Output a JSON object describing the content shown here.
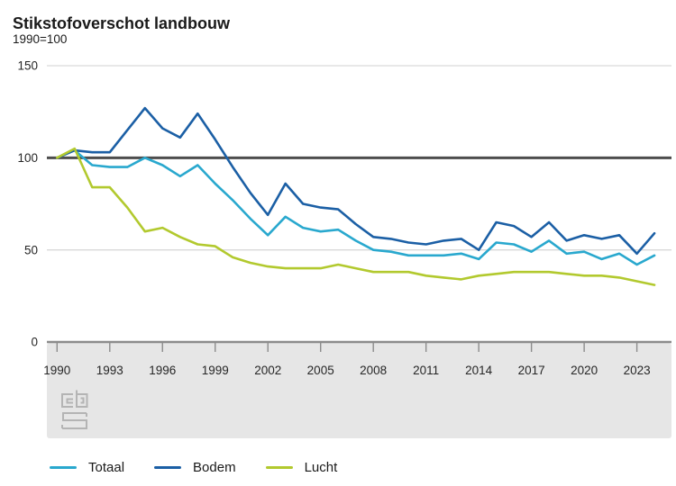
{
  "title": "Stikstofoverschot landbouw",
  "subtitle": "1990=100",
  "icons": {
    "cbs_logo": "cbs-logo-icon"
  },
  "colors": {
    "totaal": "#29a8ce",
    "bodem": "#1b5fa5",
    "lucht": "#b2c92e",
    "grid_light": "#d9d9d9",
    "baseline_100": "#4d4d4d",
    "zero_axis": "#8c8c8c",
    "band_bg": "#e6e6e6",
    "tick": "#8c8c8c",
    "text": "#262626",
    "logo_gray": "#b4b4b4"
  },
  "chart_data": {
    "type": "line",
    "title": "Stikstofoverschot landbouw",
    "subtitle": "1990=100",
    "xlabel": "",
    "ylabel": "",
    "ylim": [
      0,
      150
    ],
    "reference_line": 100,
    "grid": "horizontal",
    "legend_position": "bottom",
    "y_ticks": [
      "150",
      "100",
      "50",
      "0"
    ],
    "x_tick_labels": [
      "1990",
      "1993",
      "1996",
      "1999",
      "2002",
      "2005",
      "2008",
      "2011",
      "2014",
      "2017",
      "2020",
      "2023"
    ],
    "x": [
      1990,
      1991,
      1992,
      1993,
      1994,
      1995,
      1996,
      1997,
      1998,
      1999,
      2000,
      2001,
      2002,
      2003,
      2004,
      2005,
      2006,
      2007,
      2008,
      2009,
      2010,
      2011,
      2012,
      2013,
      2014,
      2015,
      2016,
      2017,
      2018,
      2019,
      2020,
      2021,
      2022,
      2023,
      2024
    ],
    "series": [
      {
        "name": "Totaal",
        "color_key": "totaal",
        "values": [
          100,
          104,
          96,
          95,
          95,
          100,
          96,
          90,
          96,
          86,
          77,
          67,
          58,
          68,
          62,
          60,
          61,
          55,
          50,
          49,
          47,
          47,
          47,
          48,
          45,
          54,
          53,
          49,
          55,
          48,
          49,
          45,
          48,
          42,
          47
        ]
      },
      {
        "name": "Bodem",
        "color_key": "bodem",
        "values": [
          100,
          104,
          103,
          103,
          115,
          127,
          116,
          111,
          124,
          110,
          95,
          81,
          69,
          86,
          75,
          73,
          72,
          64,
          57,
          56,
          54,
          53,
          55,
          56,
          50,
          65,
          63,
          57,
          65,
          55,
          58,
          56,
          58,
          48,
          59
        ]
      },
      {
        "name": "Lucht",
        "color_key": "lucht",
        "values": [
          100,
          105,
          84,
          84,
          73,
          60,
          62,
          57,
          53,
          52,
          46,
          43,
          41,
          40,
          40,
          40,
          42,
          40,
          38,
          38,
          38,
          36,
          35,
          34,
          36,
          37,
          38,
          38,
          38,
          37,
          36,
          36,
          35,
          33,
          31
        ]
      }
    ]
  }
}
